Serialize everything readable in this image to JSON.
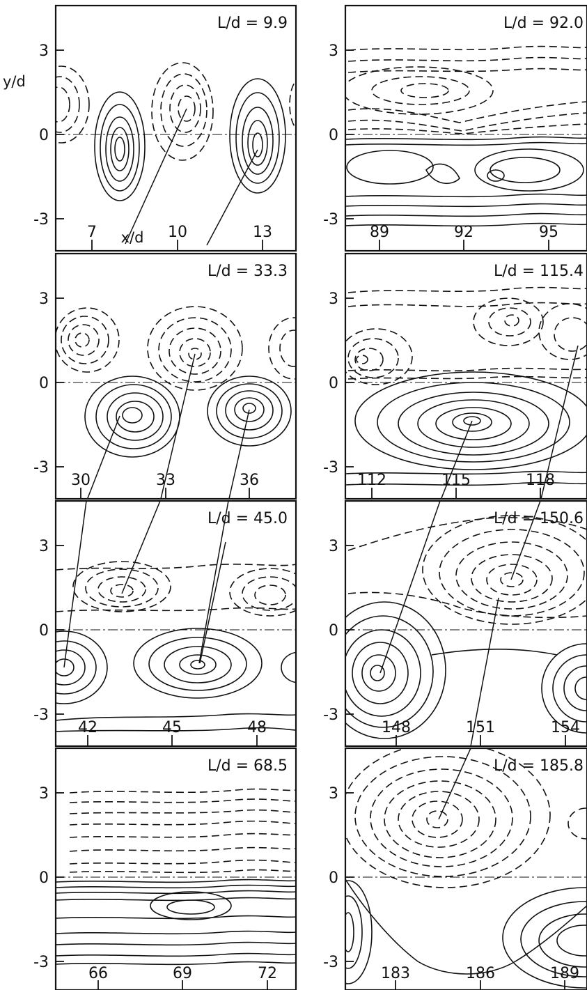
{
  "figure": {
    "x_axis_title": "x/d",
    "y_axis_title": "y/d",
    "y_tick_labels": [
      "3",
      "0",
      "-3"
    ],
    "panels": [
      {
        "title": "L/d = 9.9",
        "x_tick_labels": [
          "7",
          "10",
          "13"
        ]
      },
      {
        "title": "L/d = 33.3",
        "x_tick_labels": [
          "30",
          "33",
          "36"
        ]
      },
      {
        "title": "L/d = 45.0",
        "x_tick_labels": [
          "42",
          "45",
          "48"
        ]
      },
      {
        "title": "L/d = 68.5",
        "x_tick_labels": [
          "66",
          "69",
          "72"
        ]
      },
      {
        "title": "L/d = 92.0",
        "x_tick_labels": [
          "89",
          "92",
          "95"
        ]
      },
      {
        "title": "L/d = 115.4",
        "x_tick_labels": [
          "112",
          "115",
          "118"
        ]
      },
      {
        "title": "L/d = 150.6",
        "x_tick_labels": [
          "148",
          "151",
          "154"
        ]
      },
      {
        "title": "L/d = 185.8",
        "x_tick_labels": [
          "183",
          "186",
          "189"
        ]
      }
    ]
  }
}
